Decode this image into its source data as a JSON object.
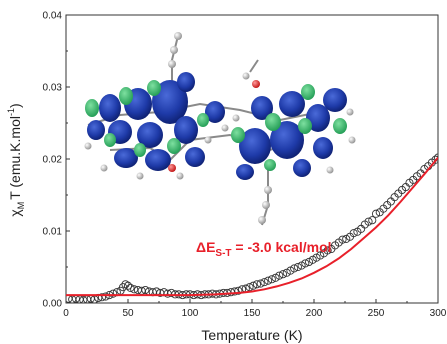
{
  "chart_data": {
    "type": "scatter",
    "title": "",
    "xlabel": "Temperature (K)",
    "ylabel_symbol": "χ",
    "ylabel_sub": "M",
    "ylabel_rest": "T (emu.K.mol",
    "ylabel_sup": "-1",
    "ylabel_close": ")",
    "xlim": [
      0,
      300
    ],
    "ylim": [
      0,
      0.04
    ],
    "x_ticks": [
      "0",
      "50",
      "100",
      "150",
      "200",
      "250",
      "300"
    ],
    "y_ticks": [
      "0.00",
      "0.01",
      "0.02",
      "0.03",
      "0.04"
    ],
    "annotation": {
      "prefix": "ΔE",
      "sub": "S-T",
      "rest": " = -3.0 kcal/mol",
      "color": "#e8202a"
    },
    "grid": false,
    "inset_image": "molecular-orbital-rendering",
    "series": [
      {
        "marker": "open-circle",
        "color": "#333333",
        "x": [
          2,
          5,
          8,
          11,
          14,
          17,
          20,
          23,
          26,
          29,
          32,
          35,
          38,
          41,
          44,
          46,
          48,
          50,
          52,
          55,
          58,
          61,
          64,
          67,
          70,
          73,
          76,
          79,
          82,
          85,
          88,
          91,
          94,
          97,
          100,
          103,
          106,
          109,
          112,
          115,
          118,
          121,
          124,
          127,
          130,
          133,
          136,
          139,
          142,
          145,
          148,
          151,
          154,
          157,
          160,
          163,
          166,
          169,
          172,
          175,
          178,
          181,
          184,
          187,
          190,
          193,
          196,
          199,
          202,
          205,
          208,
          211,
          214,
          217,
          220,
          223,
          226,
          229,
          232,
          235,
          238,
          241,
          244,
          247,
          250,
          253,
          256,
          259,
          262,
          265,
          268,
          271,
          274,
          277,
          280,
          283,
          286,
          289,
          292,
          295,
          298,
          300
        ],
        "y": [
          0.0006,
          0.0005,
          0.0006,
          0.0005,
          0.0004,
          0.0005,
          0.0006,
          0.0005,
          0.0007,
          0.0008,
          0.0009,
          0.0011,
          0.0013,
          0.0015,
          0.0017,
          0.0022,
          0.0026,
          0.0024,
          0.0021,
          0.0019,
          0.0018,
          0.0017,
          0.0018,
          0.0016,
          0.0015,
          0.0016,
          0.0014,
          0.0015,
          0.0013,
          0.0014,
          0.0012,
          0.0012,
          0.0011,
          0.0012,
          0.0012,
          0.0011,
          0.0012,
          0.0011,
          0.0012,
          0.0012,
          0.0013,
          0.0012,
          0.0013,
          0.0014,
          0.0014,
          0.0015,
          0.0016,
          0.0017,
          0.0019,
          0.002,
          0.0022,
          0.0024,
          0.0026,
          0.0027,
          0.0029,
          0.0031,
          0.0033,
          0.0035,
          0.0038,
          0.004,
          0.0042,
          0.0045,
          0.0048,
          0.005,
          0.0052,
          0.0055,
          0.0057,
          0.006,
          0.0063,
          0.0066,
          0.0069,
          0.0073,
          0.0075,
          0.008,
          0.0084,
          0.0088,
          0.0089,
          0.0092,
          0.0097,
          0.0099,
          0.0103,
          0.0109,
          0.0113,
          0.0115,
          0.0124,
          0.0126,
          0.0131,
          0.0136,
          0.0141,
          0.0147,
          0.0152,
          0.0157,
          0.0161,
          0.0167,
          0.0171,
          0.0176,
          0.018,
          0.0186,
          0.019,
          0.0195,
          0.0199,
          0.0202
        ]
      },
      {
        "marker": "line",
        "color": "#e8202a",
        "x": [
          0,
          20,
          40,
          60,
          80,
          100,
          120,
          140,
          150,
          160,
          170,
          180,
          190,
          200,
          210,
          220,
          230,
          240,
          250,
          260,
          270,
          280,
          290,
          300
        ],
        "y": [
          0.0011,
          0.0011,
          0.0011,
          0.0011,
          0.0011,
          0.0011,
          0.0012,
          0.0014,
          0.0016,
          0.0019,
          0.0023,
          0.0028,
          0.0034,
          0.0042,
          0.0051,
          0.0062,
          0.0075,
          0.009,
          0.0105,
          0.0122,
          0.0141,
          0.0161,
          0.0181,
          0.0202
        ]
      }
    ]
  }
}
